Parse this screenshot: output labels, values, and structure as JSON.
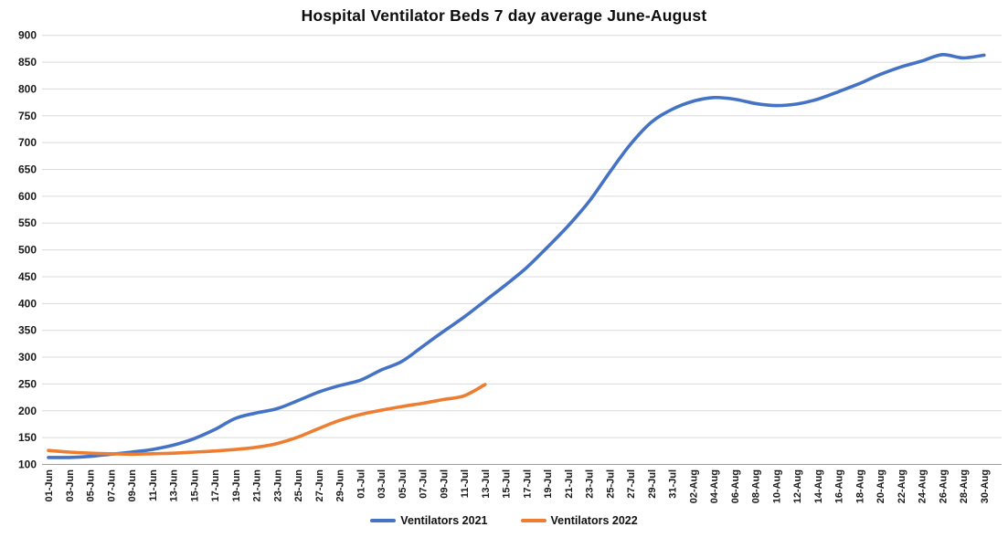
{
  "page": {
    "background": "#FFFFFF"
  },
  "chart_data": {
    "type": "line",
    "title": "Hospital Ventilator Beds 7 day average June-August",
    "grid": true,
    "legend_position": "bottom",
    "gridline_color": "#DADADA",
    "axis_line_color": "#9E9E9E",
    "tick_label_color": "#1A1A1A",
    "y_axis": {
      "min": 100,
      "max": 900,
      "step": 50,
      "ticks": [
        100,
        150,
        200,
        250,
        300,
        350,
        400,
        450,
        500,
        550,
        600,
        650,
        700,
        750,
        800,
        850,
        900
      ]
    },
    "categories": [
      "01-Jun",
      "03-Jun",
      "05-Jun",
      "07-Jun",
      "09-Jun",
      "11-Jun",
      "13-Jun",
      "15-Jun",
      "17-Jun",
      "19-Jun",
      "21-Jun",
      "23-Jun",
      "25-Jun",
      "27-Jun",
      "29-Jun",
      "01-Jul",
      "03-Jul",
      "05-Jul",
      "07-Jul",
      "09-Jul",
      "11-Jul",
      "13-Jul",
      "15-Jul",
      "17-Jul",
      "19-Jul",
      "21-Jul",
      "23-Jul",
      "25-Jul",
      "27-Jul",
      "29-Jul",
      "31-Jul",
      "02-Aug",
      "04-Aug",
      "06-Aug",
      "08-Aug",
      "10-Aug",
      "12-Aug",
      "14-Aug",
      "16-Aug",
      "18-Aug",
      "20-Aug",
      "22-Aug",
      "24-Aug",
      "26-Aug",
      "28-Aug",
      "30-Aug"
    ],
    "series": [
      {
        "name": "Ventilators 2021",
        "color": "#4472C4",
        "values": [
          113,
          113,
          115,
          119,
          123,
          128,
          136,
          148,
          165,
          186,
          196,
          204,
          219,
          235,
          247,
          257,
          276,
          292,
          320,
          348,
          375,
          405,
          435,
          467,
          505,
          545,
          590,
          645,
          697,
          738,
          762,
          777,
          784,
          781,
          773,
          769,
          772,
          781,
          795,
          810,
          827,
          841,
          852,
          864,
          858,
          863
        ]
      },
      {
        "name": "Ventilators 2022",
        "color": "#ED7D31",
        "values": [
          126,
          123,
          121,
          120,
          119,
          120,
          121,
          123,
          125,
          128,
          132,
          139,
          151,
          167,
          182,
          193,
          201,
          208,
          214,
          221,
          228,
          249
        ]
      }
    ]
  }
}
